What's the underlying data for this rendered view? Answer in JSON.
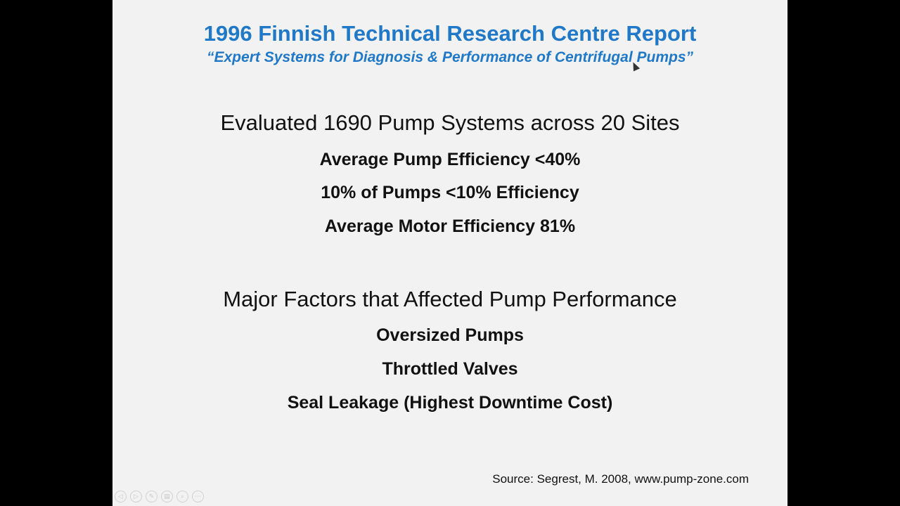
{
  "slide": {
    "title": "1996 Finnish Technical Research Centre Report",
    "subtitle": "“Expert Systems for Diagnosis & Performance of Centrifugal Pumps”",
    "section1": {
      "heading": "Evaluated 1690 Pump Systems across 20 Sites",
      "items": [
        "Average Pump Efficiency <40%",
        "10% of Pumps <10% Efficiency",
        "Average Motor Efficiency 81%"
      ]
    },
    "section2": {
      "heading": "Major Factors that Affected Pump Performance",
      "items": [
        "Oversized Pumps",
        "Throttled Valves",
        "Seal Leakage (Highest Downtime Cost)"
      ]
    },
    "source": "Source: Segrest, M. 2008, www.pump-zone.com"
  },
  "controls": {
    "icons": [
      "previous-icon",
      "next-icon",
      "pen-icon",
      "slides-icon",
      "zoom-icon",
      "more-icon"
    ],
    "glyphs": [
      "◁",
      "▷",
      "✎",
      "▤",
      "⌕",
      "⋯"
    ]
  },
  "colors": {
    "accent": "#1f78c8",
    "slide_background": "#f2f2f2",
    "letterbox": "#000000"
  }
}
